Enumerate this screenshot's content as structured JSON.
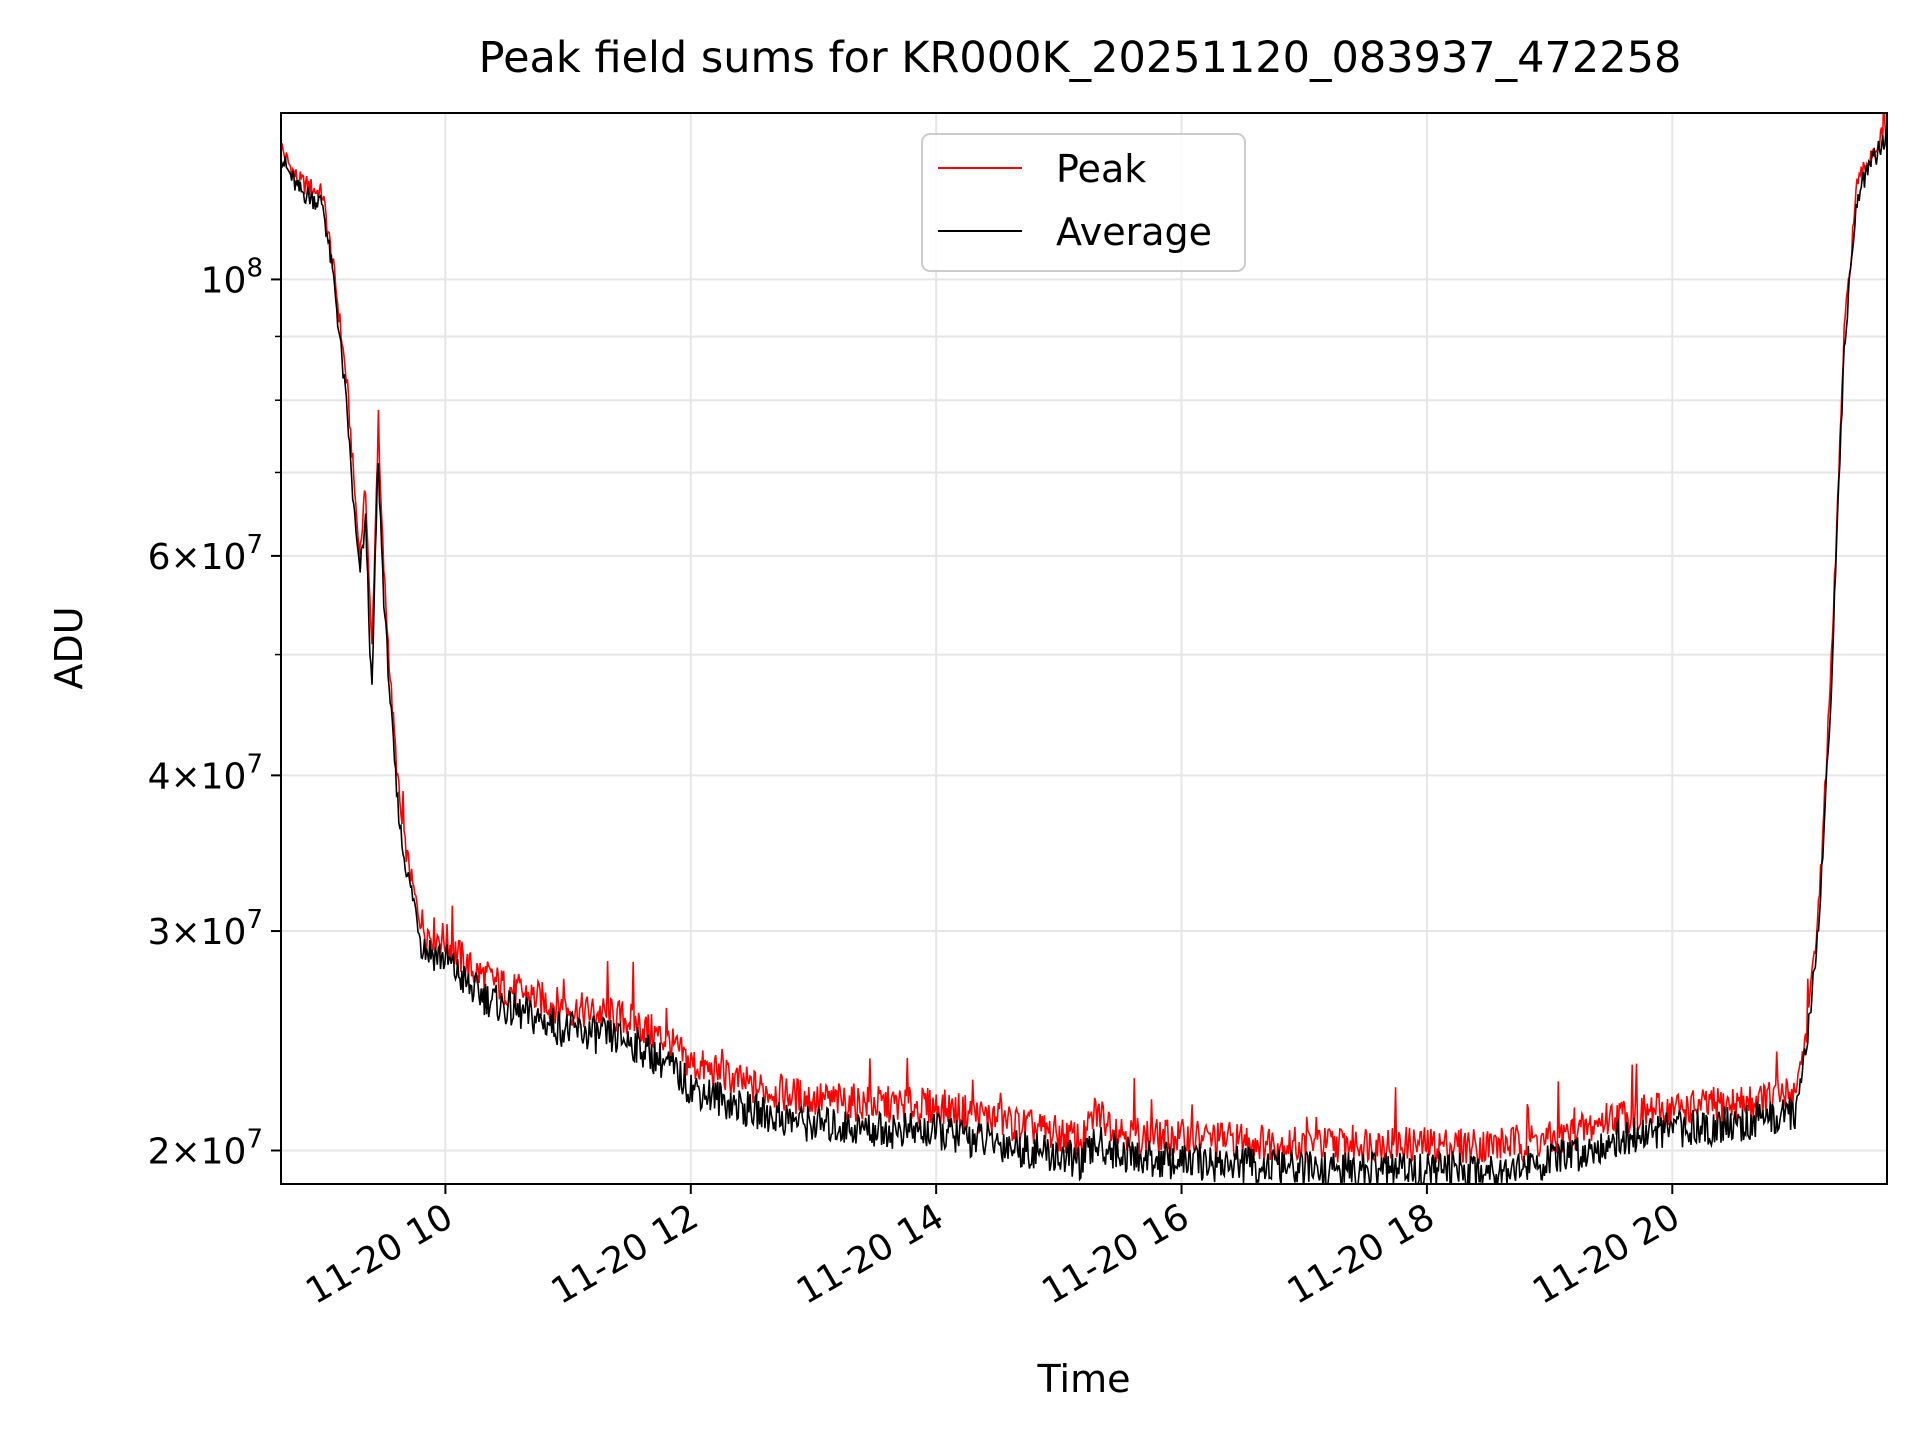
{
  "chart_data": {
    "type": "line",
    "title": "Peak field sums for KR000K_20251120_083937_472258",
    "xlabel": "Time",
    "ylabel": "ADU",
    "x_ticks": [
      "11-20 10",
      "11-20 12",
      "11-20 14",
      "11-20 16",
      "11-20 18",
      "11-20 20"
    ],
    "y_ticks": [
      {
        "base": "2",
        "times": "×",
        "mant": "10",
        "exp": "7",
        "value": 20000000
      },
      {
        "base": "3",
        "times": "×",
        "mant": "10",
        "exp": "7",
        "value": 30000000
      },
      {
        "base": "4",
        "times": "×",
        "mant": "10",
        "exp": "7",
        "value": 40000000
      },
      {
        "base": "6",
        "times": "×",
        "mant": "10",
        "exp": "7",
        "value": 60000000
      },
      {
        "base": "",
        "times": "",
        "mant": "10",
        "exp": "8",
        "value": 100000000
      }
    ],
    "y_scale": "log",
    "xlim_hours": [
      8.66,
      21.75
    ],
    "ylim": [
      18800000,
      136000000
    ],
    "grid": true,
    "legend": {
      "placement": "top-center",
      "entries": [
        "Peak",
        "Average"
      ]
    },
    "colors": {
      "peak": "#ff0000",
      "average": "#000000",
      "grid": "#e6e6e6"
    },
    "series": [
      {
        "name": "Peak",
        "color": "#ff0000",
        "x_hours": [
          8.66,
          8.7,
          8.8,
          9.0,
          9.1,
          9.2,
          9.25,
          9.3,
          9.35,
          9.4,
          9.45,
          9.5,
          9.55,
          9.6,
          9.65,
          9.7,
          9.75,
          9.8,
          9.85,
          10.0,
          10.2,
          10.5,
          11.0,
          11.5,
          11.8,
          12.0,
          12.5,
          13.0,
          13.5,
          14.0,
          14.5,
          15.0,
          15.2,
          15.3,
          15.5,
          15.7,
          16.0,
          16.5,
          17.0,
          17.5,
          18.0,
          18.5,
          19.0,
          19.3,
          19.5,
          20.0,
          20.5,
          20.8,
          21.0,
          21.1,
          21.2,
          21.3,
          21.4,
          21.5,
          21.6,
          21.75
        ],
        "y": [
          128000000,
          125000000,
          120000000,
          117000000,
          100000000,
          82000000,
          70000000,
          60000000,
          68000000,
          50000000,
          75000000,
          58000000,
          48000000,
          41000000,
          36000000,
          34000000,
          32000000,
          30500000,
          30000000,
          29500000,
          28000000,
          27000000,
          26000000,
          25500000,
          24500000,
          23500000,
          22500000,
          22000000,
          21800000,
          21700000,
          21200000,
          20600000,
          20400000,
          21500000,
          20800000,
          20500000,
          20500000,
          20400000,
          20200000,
          20300000,
          20200000,
          20200000,
          20400000,
          20800000,
          21300000,
          21600000,
          21800000,
          22000000,
          22300000,
          25000000,
          32000000,
          50000000,
          90000000,
          118000000,
          125000000,
          132000000
        ]
      },
      {
        "name": "Average",
        "color": "#000000",
        "x_hours": [
          8.66,
          8.7,
          8.8,
          9.0,
          9.1,
          9.2,
          9.25,
          9.3,
          9.35,
          9.4,
          9.45,
          9.5,
          9.55,
          9.6,
          9.65,
          9.7,
          9.75,
          9.8,
          9.85,
          10.0,
          10.2,
          10.5,
          11.0,
          11.5,
          11.8,
          12.0,
          12.5,
          13.0,
          13.5,
          14.0,
          14.5,
          15.0,
          15.2,
          15.3,
          15.5,
          15.7,
          16.0,
          16.5,
          17.0,
          17.5,
          18.0,
          18.5,
          19.0,
          19.3,
          19.5,
          20.0,
          20.5,
          20.8,
          21.0,
          21.1,
          21.2,
          21.3,
          21.4,
          21.5,
          21.6,
          21.75
        ],
        "y": [
          126000000,
          123000000,
          118000000,
          115000000,
          98000000,
          78000000,
          66000000,
          58000000,
          64000000,
          46000000,
          72000000,
          55000000,
          46000000,
          39000000,
          35000000,
          33000000,
          31500000,
          29500000,
          29000000,
          28500000,
          27000000,
          26000000,
          25000000,
          24500000,
          23500000,
          22500000,
          21500000,
          21000000,
          20800000,
          20700000,
          20300000,
          19800000,
          19600000,
          20300000,
          19900000,
          19700000,
          19600000,
          19500000,
          19300000,
          19300000,
          19300000,
          19300000,
          19600000,
          20000000,
          20400000,
          20800000,
          21000000,
          21200000,
          21500000,
          24500000,
          31000000,
          48000000,
          88000000,
          116000000,
          123000000,
          130000000
        ]
      }
    ]
  }
}
